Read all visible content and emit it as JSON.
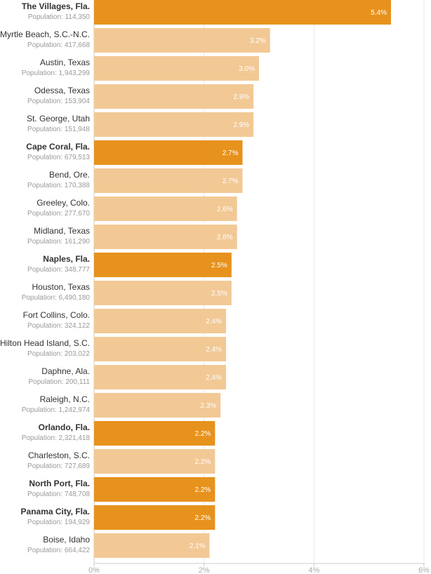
{
  "chart_data": {
    "type": "bar",
    "orientation": "horizontal",
    "title": "",
    "xlabel": "",
    "ylabel": "",
    "xlim": [
      0,
      6
    ],
    "ticks": [
      0,
      2,
      4,
      6
    ],
    "tick_labels": [
      "0%",
      "2%",
      "4%",
      "6%"
    ],
    "grid": true,
    "colors": {
      "highlight": "#E8921E",
      "normal": "#F2C895"
    },
    "categories": [
      {
        "name": "The Villages, Fla.",
        "population": "Population: 114,350",
        "value": 5.4,
        "label": "5.4%",
        "highlight": true
      },
      {
        "name": "Myrtle Beach, S.C.-N.C.",
        "population": "Population: 417,668",
        "value": 3.2,
        "label": "3.2%",
        "highlight": false
      },
      {
        "name": "Austin, Texas",
        "population": "Population: 1,943,299",
        "value": 3.0,
        "label": "3.0%",
        "highlight": false
      },
      {
        "name": "Odessa, Texas",
        "population": "Population: 153,904",
        "value": 2.9,
        "label": "2.9%",
        "highlight": false
      },
      {
        "name": "St. George, Utah",
        "population": "Population: 151,948",
        "value": 2.9,
        "label": "2.9%",
        "highlight": false
      },
      {
        "name": "Cape Coral, Fla.",
        "population": "Population: 679,513",
        "value": 2.7,
        "label": "2.7%",
        "highlight": true
      },
      {
        "name": "Bend, Ore.",
        "population": "Population: 170,388",
        "value": 2.7,
        "label": "2.7%",
        "highlight": false
      },
      {
        "name": "Greeley, Colo.",
        "population": "Population: 277,670",
        "value": 2.6,
        "label": "2.6%",
        "highlight": false
      },
      {
        "name": "Midland, Texas",
        "population": "Population: 161,290",
        "value": 2.6,
        "label": "2.6%",
        "highlight": false
      },
      {
        "name": "Naples, Fla.",
        "population": "Population: 348,777",
        "value": 2.5,
        "label": "2.5%",
        "highlight": true
      },
      {
        "name": "Houston, Texas",
        "population": "Population: 6,490,180",
        "value": 2.5,
        "label": "2.5%",
        "highlight": false
      },
      {
        "name": "Fort Collins, Colo.",
        "population": "Population: 324,122",
        "value": 2.4,
        "label": "2.4%",
        "highlight": false
      },
      {
        "name": "Hilton Head Island, S.C.",
        "population": "Population: 203,022",
        "value": 2.4,
        "label": "2.4%",
        "highlight": false
      },
      {
        "name": "Daphne, Ala.",
        "population": "Population: 200,111",
        "value": 2.4,
        "label": "2.4%",
        "highlight": false
      },
      {
        "name": "Raleigh, N.C.",
        "population": "Population: 1,242,974",
        "value": 2.3,
        "label": "2.3%",
        "highlight": false
      },
      {
        "name": "Orlando, Fla.",
        "population": "Population: 2,321,418",
        "value": 2.2,
        "label": "2.2%",
        "highlight": true
      },
      {
        "name": "Charleston, S.C.",
        "population": "Population: 727,689",
        "value": 2.2,
        "label": "2.2%",
        "highlight": false
      },
      {
        "name": "North Port, Fla.",
        "population": "Population: 748,708",
        "value": 2.2,
        "label": "2.2%",
        "highlight": true
      },
      {
        "name": "Panama City, Fla.",
        "population": "Population: 194,929",
        "value": 2.2,
        "label": "2.2%",
        "highlight": true
      },
      {
        "name": "Boise, Idaho",
        "population": "Population: 664,422",
        "value": 2.1,
        "label": "2.1%",
        "highlight": false
      }
    ]
  }
}
